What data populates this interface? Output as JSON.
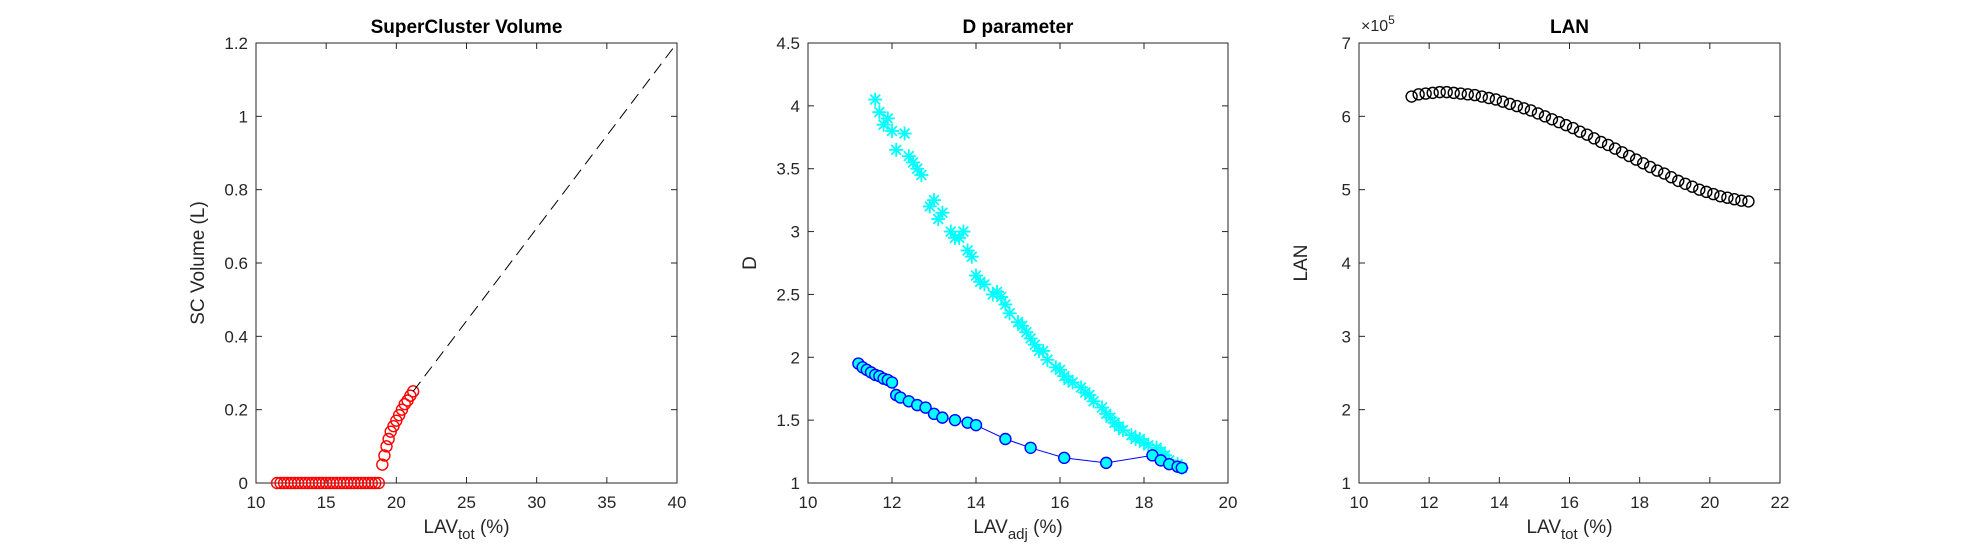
{
  "chart_data": [
    {
      "type": "scatter",
      "title": "SuperCluster Volume",
      "xlabel": {
        "base": "LAV",
        "sub": "tot",
        "rest": " (%)"
      },
      "ylabel": "SC Volume (L)",
      "xlim": [
        10,
        40
      ],
      "ylim": [
        0,
        1.2
      ],
      "xticks": [
        "10",
        "15",
        "20",
        "25",
        "30",
        "35",
        "40"
      ],
      "yticks": [
        "0",
        "0.2",
        "0.4",
        "0.6",
        "0.8",
        "1",
        "1.2"
      ],
      "series": [
        {
          "marker": "circle",
          "color": "#ff0000",
          "x": [
            11.5,
            11.75,
            12.0,
            12.25,
            12.5,
            12.75,
            13.0,
            13.25,
            13.5,
            13.75,
            14.0,
            14.25,
            14.5,
            14.75,
            15.0,
            15.25,
            15.5,
            15.75,
            16.0,
            16.25,
            16.5,
            16.75,
            17.0,
            17.25,
            17.5,
            17.75,
            18.0,
            18.25,
            18.5,
            18.75,
            19.0,
            19.15,
            19.3,
            19.45,
            19.6,
            19.8,
            20.0,
            20.2,
            20.4,
            20.6,
            20.8,
            21.0,
            21.2
          ],
          "y": [
            0,
            0,
            0,
            0,
            0,
            0,
            0,
            0,
            0,
            0,
            0,
            0,
            0,
            0,
            0,
            0,
            0,
            0,
            0,
            0,
            0,
            0,
            0,
            0,
            0,
            0,
            0,
            0,
            0,
            0,
            0.05,
            0.075,
            0.1,
            0.12,
            0.14,
            0.155,
            0.17,
            0.185,
            0.2,
            0.215,
            0.225,
            0.238,
            0.25
          ]
        },
        {
          "line": "dashed",
          "color": "#000000",
          "x": [
            21.2,
            40
          ],
          "y": [
            0.25,
            1.2
          ]
        }
      ]
    },
    {
      "type": "scatter",
      "title": "D parameter",
      "xlabel": {
        "base": "LAV",
        "sub": "adj",
        "rest": " (%)"
      },
      "ylabel": "D",
      "xlim": [
        10,
        20
      ],
      "ylim": [
        1,
        4.5
      ],
      "xticks": [
        "10",
        "12",
        "14",
        "16",
        "18",
        "20"
      ],
      "yticks": [
        "1",
        "1.5",
        "2",
        "2.5",
        "3",
        "3.5",
        "4",
        "4.5"
      ],
      "series": [
        {
          "marker": "asterisk",
          "color": "#00ffff",
          "x": [
            11.6,
            11.7,
            11.8,
            11.9,
            12.0,
            12.1,
            12.3,
            12.4,
            12.5,
            12.6,
            12.7,
            12.9,
            13.0,
            13.1,
            13.2,
            13.4,
            13.5,
            13.6,
            13.7,
            13.8,
            13.9,
            14.0,
            14.1,
            14.2,
            14.4,
            14.5,
            14.6,
            14.7,
            14.8,
            15.0,
            15.1,
            15.2,
            15.3,
            15.4,
            15.5,
            15.6,
            15.7,
            15.9,
            16.0,
            16.1,
            16.2,
            16.3,
            16.5,
            16.6,
            16.7,
            16.8,
            17.0,
            17.1,
            17.2,
            17.3,
            17.4,
            17.5,
            17.7,
            17.8,
            17.9,
            18.0,
            18.1,
            18.3,
            18.4,
            18.5,
            18.6,
            18.8,
            18.9
          ],
          "y": [
            4.05,
            3.95,
            3.85,
            3.9,
            3.8,
            3.65,
            3.78,
            3.6,
            3.55,
            3.5,
            3.45,
            3.2,
            3.25,
            3.1,
            3.15,
            3.0,
            2.95,
            2.95,
            3.0,
            2.85,
            2.8,
            2.65,
            2.6,
            2.58,
            2.5,
            2.52,
            2.48,
            2.42,
            2.35,
            2.28,
            2.25,
            2.2,
            2.15,
            2.1,
            2.05,
            2.05,
            1.98,
            1.92,
            1.9,
            1.85,
            1.82,
            1.8,
            1.76,
            1.72,
            1.7,
            1.65,
            1.6,
            1.55,
            1.52,
            1.48,
            1.45,
            1.42,
            1.38,
            1.35,
            1.35,
            1.32,
            1.3,
            1.28,
            1.25,
            1.22,
            1.18,
            1.15,
            1.12
          ]
        },
        {
          "marker": "circle-filled",
          "line": "solid",
          "color": "#0000ff",
          "fill": "#00ffff",
          "x": [
            11.2,
            11.3,
            11.4,
            11.5,
            11.6,
            11.7,
            11.8,
            11.9,
            12.0,
            12.1,
            12.2,
            12.4,
            12.6,
            12.8,
            13.0,
            13.2,
            13.5,
            13.8,
            14.0,
            14.7,
            15.3,
            16.1,
            17.1,
            18.2,
            18.4,
            18.6,
            18.8,
            18.9
          ],
          "y": [
            1.95,
            1.92,
            1.9,
            1.88,
            1.86,
            1.85,
            1.83,
            1.82,
            1.8,
            1.7,
            1.68,
            1.65,
            1.62,
            1.6,
            1.55,
            1.52,
            1.5,
            1.48,
            1.46,
            1.35,
            1.28,
            1.2,
            1.16,
            1.22,
            1.18,
            1.15,
            1.13,
            1.12
          ]
        }
      ]
    },
    {
      "type": "scatter",
      "title": "LAN",
      "xlabel": {
        "base": "LAV",
        "sub": "tot",
        "rest": " (%)"
      },
      "ylabel": "LAN",
      "xlim": [
        10,
        22
      ],
      "ylim": [
        1,
        7
      ],
      "yscale_exponent": {
        "base": "×10",
        "power": "5"
      },
      "xticks": [
        "10",
        "12",
        "14",
        "16",
        "18",
        "20",
        "22"
      ],
      "yticks": [
        "1",
        "2",
        "3",
        "4",
        "5",
        "6",
        "7"
      ],
      "series": [
        {
          "marker": "circle-open",
          "color": "#000000",
          "x": [
            11.5,
            11.7,
            11.9,
            12.1,
            12.3,
            12.5,
            12.7,
            12.9,
            13.1,
            13.3,
            13.5,
            13.7,
            13.9,
            14.1,
            14.3,
            14.5,
            14.7,
            14.9,
            15.1,
            15.3,
            15.5,
            15.7,
            15.9,
            16.1,
            16.3,
            16.5,
            16.7,
            16.9,
            17.1,
            17.3,
            17.5,
            17.7,
            17.9,
            18.1,
            18.3,
            18.5,
            18.7,
            18.9,
            19.1,
            19.3,
            19.5,
            19.7,
            19.9,
            20.1,
            20.3,
            20.5,
            20.7,
            20.9,
            21.1
          ],
          "y": [
            6.27,
            6.3,
            6.31,
            6.32,
            6.33,
            6.33,
            6.32,
            6.31,
            6.3,
            6.29,
            6.27,
            6.25,
            6.23,
            6.2,
            6.17,
            6.14,
            6.11,
            6.08,
            6.04,
            6.0,
            5.96,
            5.92,
            5.88,
            5.84,
            5.79,
            5.75,
            5.7,
            5.65,
            5.61,
            5.56,
            5.51,
            5.46,
            5.41,
            5.36,
            5.31,
            5.26,
            5.22,
            5.17,
            5.12,
            5.08,
            5.04,
            5.0,
            4.97,
            4.94,
            4.91,
            4.89,
            4.87,
            4.85,
            4.84
          ]
        }
      ]
    }
  ]
}
